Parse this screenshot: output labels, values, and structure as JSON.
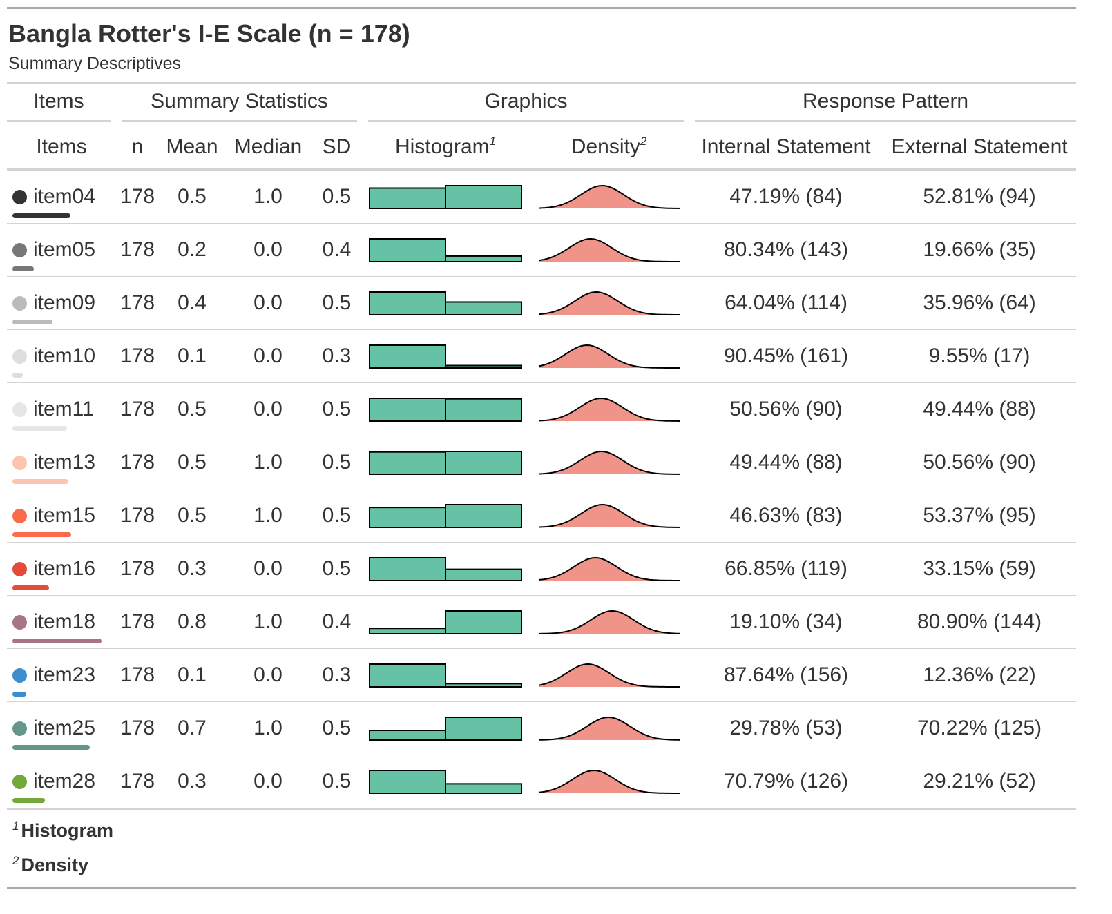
{
  "header": {
    "title": "Bangla Rotter's I-E Scale (n = 178)",
    "subtitle": "Summary Descriptives"
  },
  "spanners": {
    "items": "Items",
    "summary": "Summary Statistics",
    "graphics": "Graphics",
    "response": "Response Pattern"
  },
  "columns": {
    "items": "Items",
    "n": "n",
    "mean": "Mean",
    "median": "Median",
    "sd": "SD",
    "histogram": "Histogram",
    "histogram_mark": "1",
    "density": "Density",
    "density_mark": "2",
    "internal": "Internal Statement",
    "external": "External Statement"
  },
  "colors": {
    "histogram_fill": "#66c2a5",
    "density_fill": "#f0948a",
    "outline": "#000000"
  },
  "rows": [
    {
      "item": "item04",
      "color": "#333333",
      "n": "178",
      "mean": "0.5",
      "median": "1.0",
      "sd": "0.5",
      "internal": "47.19% (84)",
      "external": "52.81% (94)",
      "internal_pct": 47.19,
      "external_pct": 52.81
    },
    {
      "item": "item05",
      "color": "#777777",
      "n": "178",
      "mean": "0.2",
      "median": "0.0",
      "sd": "0.4",
      "internal": "80.34% (143)",
      "external": "19.66% (35)",
      "internal_pct": 80.34,
      "external_pct": 19.66
    },
    {
      "item": "item09",
      "color": "#bbbbbb",
      "n": "178",
      "mean": "0.4",
      "median": "0.0",
      "sd": "0.5",
      "internal": "64.04% (114)",
      "external": "35.96% (64)",
      "internal_pct": 64.04,
      "external_pct": 35.96
    },
    {
      "item": "item10",
      "color": "#dddddd",
      "n": "178",
      "mean": "0.1",
      "median": "0.0",
      "sd": "0.3",
      "internal": "90.45% (161)",
      "external": "9.55% (17)",
      "internal_pct": 90.45,
      "external_pct": 9.55
    },
    {
      "item": "item11",
      "color": "#e6e6e6",
      "n": "178",
      "mean": "0.5",
      "median": "0.0",
      "sd": "0.5",
      "internal": "50.56% (90)",
      "external": "49.44% (88)",
      "internal_pct": 50.56,
      "external_pct": 49.44
    },
    {
      "item": "item13",
      "color": "#fcc5b0",
      "n": "178",
      "mean": "0.5",
      "median": "1.0",
      "sd": "0.5",
      "internal": "49.44% (88)",
      "external": "50.56% (90)",
      "internal_pct": 49.44,
      "external_pct": 50.56
    },
    {
      "item": "item15",
      "color": "#fb6a4a",
      "n": "178",
      "mean": "0.5",
      "median": "1.0",
      "sd": "0.5",
      "internal": "46.63% (83)",
      "external": "53.37% (95)",
      "internal_pct": 46.63,
      "external_pct": 53.37
    },
    {
      "item": "item16",
      "color": "#e84a3a",
      "n": "178",
      "mean": "0.3",
      "median": "0.0",
      "sd": "0.5",
      "internal": "66.85% (119)",
      "external": "33.15% (59)",
      "internal_pct": 66.85,
      "external_pct": 33.15
    },
    {
      "item": "item18",
      "color": "#a87586",
      "n": "178",
      "mean": "0.8",
      "median": "1.0",
      "sd": "0.4",
      "internal": "19.10% (34)",
      "external": "80.90% (144)",
      "internal_pct": 19.1,
      "external_pct": 80.9
    },
    {
      "item": "item23",
      "color": "#3b8fcf",
      "n": "178",
      "mean": "0.1",
      "median": "0.0",
      "sd": "0.3",
      "internal": "87.64% (156)",
      "external": "12.36% (22)",
      "internal_pct": 87.64,
      "external_pct": 12.36
    },
    {
      "item": "item25",
      "color": "#64968a",
      "n": "178",
      "mean": "0.7",
      "median": "1.0",
      "sd": "0.5",
      "internal": "29.78% (53)",
      "external": "70.22% (125)",
      "internal_pct": 29.78,
      "external_pct": 70.22
    },
    {
      "item": "item28",
      "color": "#74a83a",
      "n": "178",
      "mean": "0.3",
      "median": "0.0",
      "sd": "0.5",
      "internal": "70.79% (126)",
      "external": "29.21% (52)",
      "internal_pct": 70.79,
      "external_pct": 29.21
    }
  ],
  "footnotes": [
    {
      "mark": "1",
      "text": "Histogram"
    },
    {
      "mark": "2",
      "text": "Density"
    }
  ]
}
